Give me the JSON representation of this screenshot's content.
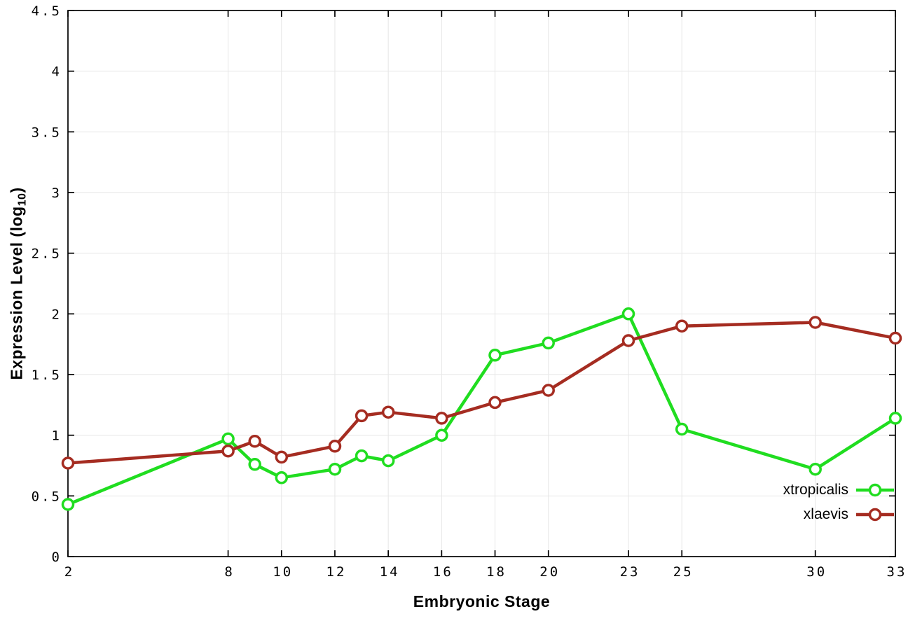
{
  "chart_data": {
    "type": "line",
    "title": "",
    "xlabel": "Embryonic Stage",
    "ylabel": "Expression Level (log10)",
    "ylabel_parts": {
      "pre": "Expression Level (log",
      "sub": "10",
      "post": ")"
    },
    "xlim": [
      2,
      33
    ],
    "ylim": [
      0,
      4.5
    ],
    "y_tick_step": 0.5,
    "x_ticks": [
      2,
      8,
      10,
      12,
      14,
      16,
      18,
      20,
      23,
      25,
      30,
      33
    ],
    "grid": true,
    "legend_position": "bottom-right-inside",
    "x": [
      2,
      8,
      9,
      10,
      12,
      13,
      14,
      16,
      18,
      20,
      23,
      25,
      30,
      33
    ],
    "series": [
      {
        "name": "xtropicalis",
        "color": "#20dd20",
        "values": [
          0.43,
          0.97,
          0.76,
          0.65,
          0.72,
          0.83,
          0.79,
          1.0,
          1.66,
          1.76,
          2.0,
          1.05,
          0.72,
          1.14
        ]
      },
      {
        "name": "xlaevis",
        "color": "#a52c21",
        "values": [
          0.77,
          0.87,
          0.95,
          0.82,
          0.91,
          1.16,
          1.19,
          1.14,
          1.27,
          1.37,
          1.78,
          1.9,
          1.93,
          1.8
        ]
      }
    ],
    "colors": {
      "grid": "#e6e6e6",
      "axis": "#000000",
      "background": "#ffffff"
    }
  }
}
